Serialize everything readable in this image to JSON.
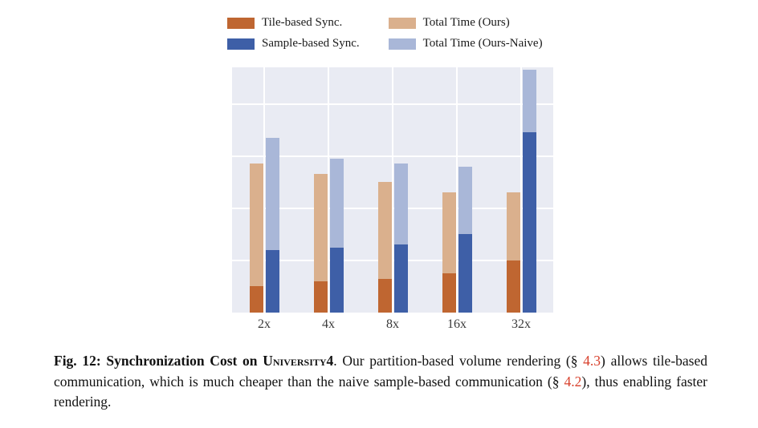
{
  "chart_data": {
    "type": "bar",
    "variant": "grouped-stacked",
    "title": "",
    "xlabel": "",
    "ylabel": "",
    "categories": [
      "2x",
      "4x",
      "8x",
      "16x",
      "32x"
    ],
    "series": [
      {
        "name": "Tile-based Sync.",
        "group": "ours",
        "role": "sync-segment",
        "color": "#bf6631",
        "values": [
          10,
          12,
          13,
          15,
          20
        ]
      },
      {
        "name": "Total Time (Ours)",
        "group": "ours",
        "role": "total-bar",
        "color": "#dab08d",
        "values": [
          57,
          53,
          50,
          46,
          46
        ]
      },
      {
        "name": "Sample-based Sync.",
        "group": "naive",
        "role": "sync-segment",
        "color": "#3e5fa7",
        "values": [
          24,
          25,
          26,
          30,
          69
        ]
      },
      {
        "name": "Total Time (Ours-Naive)",
        "group": "naive",
        "role": "total-bar",
        "color": "#a9b7d8",
        "values": [
          67,
          59,
          57,
          56,
          93
        ]
      }
    ],
    "ylim": [
      0,
      94
    ],
    "gridlines": [
      20,
      40,
      60,
      80
    ],
    "grid": true,
    "legend_position": "top",
    "plot_bg": "#e9ebf3",
    "grid_color": "#ffffff"
  },
  "caption": {
    "fig_head": "Fig. 12: Synchronization Cost on ",
    "dataset": "University4",
    "after": ". Our partition-based volume rendering (§ ",
    "link1": "4.3",
    "mid": ") allows tile-based communication, which is much cheaper than the naive sample-based communication (§ ",
    "link2": "4.2",
    "tail": "), thus enabling faster rendering.",
    "link_color": "#d8402c"
  }
}
